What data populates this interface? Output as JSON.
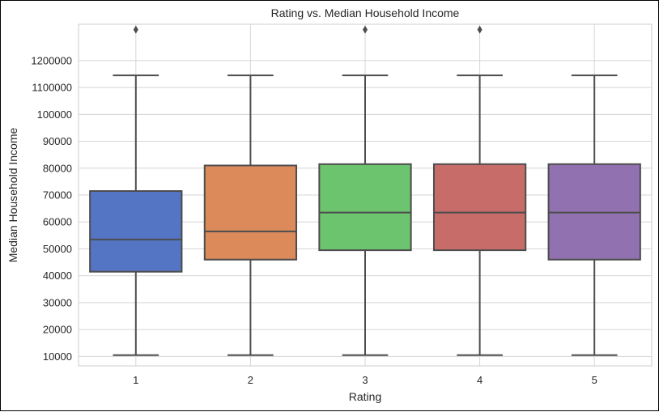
{
  "chart_data": {
    "type": "box",
    "title": "Rating vs. Median Household Income",
    "xlabel": "Rating",
    "ylabel": "Median Household Income",
    "categories": [
      "1",
      "2",
      "3",
      "4",
      "5"
    ],
    "y_ticks": [
      {
        "label": "10000",
        "slot": 0
      },
      {
        "label": "20000",
        "slot": 1
      },
      {
        "label": "30000",
        "slot": 2
      },
      {
        "label": "40000",
        "slot": 3
      },
      {
        "label": "50000",
        "slot": 4
      },
      {
        "label": "60000",
        "slot": 5
      },
      {
        "label": "70000",
        "slot": 6
      },
      {
        "label": "80000",
        "slot": 7
      },
      {
        "label": "90000",
        "slot": 8
      },
      {
        "label": "100000",
        "slot": 9
      },
      {
        "label": "1100000",
        "slot": 10
      },
      {
        "label": "1200000",
        "slot": 11
      }
    ],
    "ylim_slots": [
      -0.35,
      12.35
    ],
    "boxes": [
      {
        "category": "1",
        "color": "#4c72b0",
        "fill": "#5475c3",
        "whisker_low": 0.05,
        "q1": 3.15,
        "median": 4.35,
        "q3": 6.15,
        "whisker_high": 10.45,
        "outliers": [
          12.15
        ]
      },
      {
        "category": "2",
        "color": "#dd8452",
        "fill": "#dc8a5a",
        "whisker_low": 0.05,
        "q1": 3.6,
        "median": 4.65,
        "q3": 7.1,
        "whisker_high": 10.45,
        "outliers": []
      },
      {
        "category": "3",
        "color": "#55a868",
        "fill": "#6cc46f",
        "whisker_low": 0.05,
        "q1": 3.95,
        "median": 5.35,
        "q3": 7.15,
        "whisker_high": 10.45,
        "outliers": [
          12.15
        ]
      },
      {
        "category": "4",
        "color": "#c44e52",
        "fill": "#c86c6a",
        "whisker_low": 0.05,
        "q1": 3.95,
        "median": 5.35,
        "q3": 7.15,
        "whisker_high": 10.45,
        "outliers": [
          12.15
        ]
      },
      {
        "category": "5",
        "color": "#8172b3",
        "fill": "#9271b0",
        "whisker_low": 0.05,
        "q1": 3.6,
        "median": 5.35,
        "q3": 7.15,
        "whisker_high": 10.45,
        "outliers": []
      }
    ],
    "grid": true,
    "legend": "none"
  }
}
